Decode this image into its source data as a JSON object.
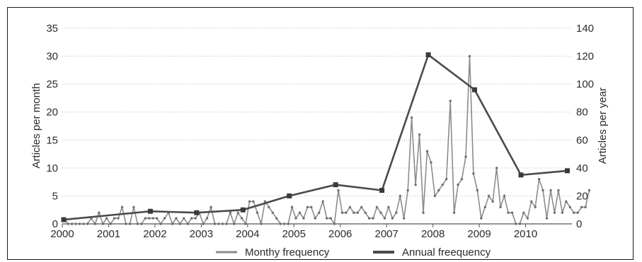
{
  "chart_data": {
    "type": "line",
    "ylabel_left": "Articles per month",
    "ylabel_right": "Articles per year",
    "ylim_left": [
      0,
      35
    ],
    "ylim_right": [
      0,
      140
    ],
    "yticks_left": [
      "0",
      "5",
      "10",
      "15",
      "20",
      "25",
      "30",
      "35"
    ],
    "yticks_right": [
      "0",
      "20",
      "40",
      "60",
      "80",
      "100",
      "120",
      "140"
    ],
    "xlim": [
      2000,
      2011
    ],
    "xticks": [
      "2000",
      "2001",
      "2002",
      "2003",
      "2004",
      "2005",
      "2006",
      "2007",
      "2008",
      "2009",
      "2010"
    ],
    "grid": "horizontal dotted",
    "legend_position": "bottom",
    "series": [
      {
        "name": "Monthy frequency",
        "axis": "left",
        "color": "#8c8c8c",
        "x_start": 2000,
        "x_step_months": 1,
        "values": [
          1,
          0,
          0,
          0,
          0,
          0,
          0,
          1,
          0,
          2,
          0,
          1,
          0,
          1,
          1,
          3,
          0,
          0,
          3,
          0,
          0,
          1,
          1,
          1,
          1,
          0,
          1,
          2,
          0,
          1,
          0,
          1,
          0,
          1,
          1,
          2,
          0,
          1,
          3,
          0,
          0,
          0,
          0,
          2,
          0,
          2,
          1,
          0,
          4,
          4,
          2,
          0,
          4,
          3,
          2,
          1,
          0,
          0,
          0,
          3,
          1,
          2,
          1,
          3,
          3,
          1,
          2,
          4,
          1,
          1,
          0,
          6,
          2,
          2,
          3,
          2,
          2,
          3,
          2,
          1,
          1,
          3,
          2,
          1,
          3,
          1,
          2,
          5,
          1,
          6,
          19,
          7,
          16,
          2,
          13,
          11,
          5,
          6,
          7,
          8,
          22,
          2,
          7,
          8,
          12,
          30,
          9,
          6,
          1,
          3,
          5,
          4,
          10,
          3,
          5,
          2,
          2,
          0,
          0,
          2,
          1,
          4,
          3,
          8,
          6,
          1,
          6,
          2,
          6,
          2,
          4,
          3,
          2,
          2,
          3,
          3,
          6
        ]
      },
      {
        "name": "Annual freequency",
        "axis": "right",
        "color": "#4a4a4a",
        "x": [
          2000,
          2001,
          2002,
          2003,
          2004,
          2005,
          2006,
          2007,
          2008,
          2009,
          2010
        ],
        "values": [
          3,
          9,
          8,
          10,
          20,
          28,
          24,
          121,
          96,
          35,
          38
        ]
      }
    ]
  }
}
